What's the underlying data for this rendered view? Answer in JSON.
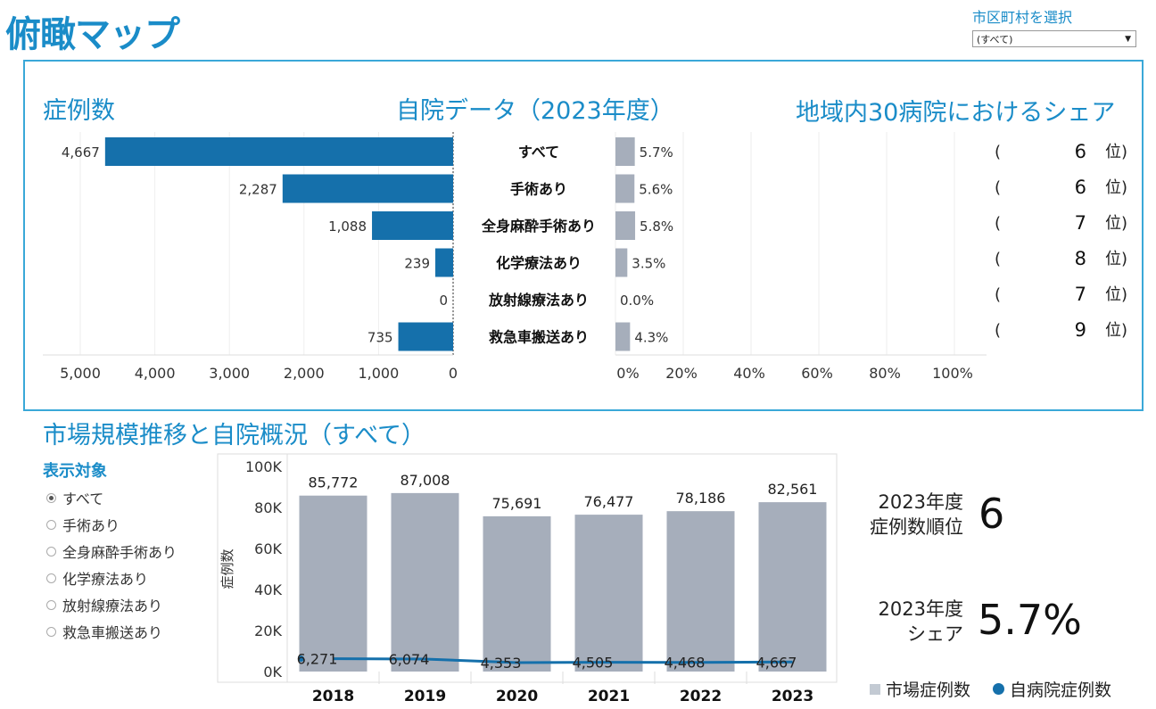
{
  "header": {
    "title": "俯瞰マップ",
    "selector_label": "市区町村を選択",
    "selector_value": "(すべて)"
  },
  "top_panel": {
    "cases_title": "症例数",
    "own_title": "自院データ（2023年度）",
    "share_title": "地域内30病院におけるシェア",
    "rows": [
      {
        "label": "すべて",
        "cases": 4667,
        "cases_text": "4,667",
        "share": 5.7,
        "share_text": "5.7%",
        "rank": "6",
        "rank_unit": "位)",
        "paren": "("
      },
      {
        "label": "手術あり",
        "cases": 2287,
        "cases_text": "2,287",
        "share": 5.6,
        "share_text": "5.6%",
        "rank": "6",
        "rank_unit": "位)",
        "paren": "("
      },
      {
        "label": "全身麻酔手術あり",
        "cases": 1088,
        "cases_text": "1,088",
        "share": 5.8,
        "share_text": "5.8%",
        "rank": "7",
        "rank_unit": "位)",
        "paren": "("
      },
      {
        "label": "化学療法あり",
        "cases": 239,
        "cases_text": "239",
        "share": 3.5,
        "share_text": "3.5%",
        "rank": "8",
        "rank_unit": "位)",
        "paren": "("
      },
      {
        "label": "放射線療法あり",
        "cases": 0,
        "cases_text": "0",
        "share": 0.0,
        "share_text": "0.0%",
        "rank": "7",
        "rank_unit": "位)",
        "paren": "("
      },
      {
        "label": "救急車搬送あり",
        "cases": 735,
        "cases_text": "735",
        "share": 4.3,
        "share_text": "4.3%",
        "rank": "9",
        "rank_unit": "位)",
        "paren": "("
      }
    ],
    "cases_axis_ticks": [
      "5,000",
      "4,000",
      "3,000",
      "2,000",
      "1,000",
      "0"
    ],
    "share_axis_ticks": [
      "0%",
      "20%",
      "40%",
      "60%",
      "80%",
      "100%"
    ]
  },
  "bottom": {
    "section_title": "市場規模推移と自院概況（すべて）",
    "filter_title": "表示対象",
    "filter_options": [
      {
        "label": "すべて",
        "selected": true
      },
      {
        "label": "手術あり",
        "selected": false
      },
      {
        "label": "全身麻酔手術あり",
        "selected": false
      },
      {
        "label": "化学療法あり",
        "selected": false
      },
      {
        "label": "放射線療法あり",
        "selected": false
      },
      {
        "label": "救急車搬送あり",
        "selected": false
      }
    ],
    "kpi_rank_label_1": "2023年度",
    "kpi_rank_label_2": "症例数順位",
    "kpi_rank_value": "6",
    "kpi_share_label_1": "2023年度",
    "kpi_share_label_2": "シェア",
    "kpi_share_value": "5.7%",
    "legend_market": "市場症例数",
    "legend_own": "自病院症例数"
  },
  "colors": {
    "accent": "#1a8cc8",
    "bar_blue": "#1570ab",
    "bar_grey": "#a6aebb",
    "line_blue": "#1570ab"
  },
  "chart_data": [
    {
      "type": "bar",
      "title": "症例数",
      "categories": [
        "すべて",
        "手術あり",
        "全身麻酔手術あり",
        "化学療法あり",
        "放射線療法あり",
        "救急車搬送あり"
      ],
      "values": [
        4667,
        2287,
        1088,
        239,
        0,
        735
      ],
      "xlim": [
        0,
        5000
      ]
    },
    {
      "type": "bar",
      "title": "地域内30病院におけるシェア",
      "categories": [
        "すべて",
        "手術あり",
        "全身麻酔手術あり",
        "化学療法あり",
        "放射線療法あり",
        "救急車搬送あり"
      ],
      "values": [
        5.7,
        5.6,
        5.8,
        3.5,
        0.0,
        4.3
      ],
      "xlim": [
        0,
        100
      ]
    },
    {
      "type": "bar",
      "title": "市場規模推移と自院概況（すべて）",
      "categories": [
        "2018",
        "2019",
        "2020",
        "2021",
        "2022",
        "2023"
      ],
      "ylabel": "症例数",
      "ylim": [
        0,
        100000
      ],
      "y_ticks": [
        "100K",
        "80K",
        "60K",
        "40K",
        "20K",
        "0K"
      ],
      "series": [
        {
          "name": "市場症例数",
          "type": "bar",
          "values": [
            85772,
            87008,
            75691,
            76477,
            78186,
            82561
          ],
          "labels": [
            "85,772",
            "87,008",
            "75,691",
            "76,477",
            "78,186",
            "82,561"
          ]
        },
        {
          "name": "自病院症例数",
          "type": "line",
          "values": [
            6271,
            6074,
            4353,
            4505,
            4468,
            4667
          ],
          "labels": [
            "6,271",
            "6,074",
            "4,353",
            "4,505",
            "4,468",
            "4,667"
          ]
        }
      ]
    }
  ]
}
